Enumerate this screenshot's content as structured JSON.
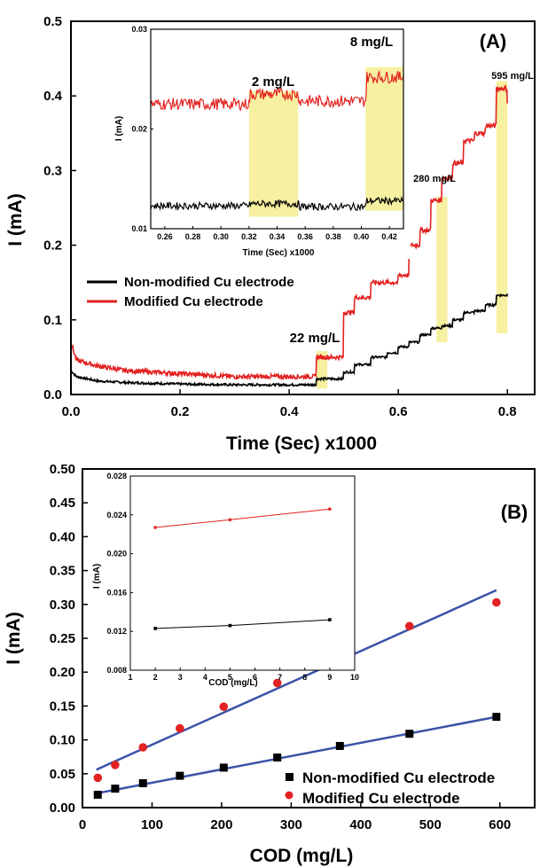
{
  "colors": {
    "modified": "#e32222",
    "nonmodified": "#000000",
    "fit": "#3b52a8",
    "highlight": "#f7f0a0"
  },
  "chart_data": [
    {
      "id": "A",
      "type": "line",
      "panel_label": "(A)",
      "xlabel": "Time (Sec) x1000",
      "ylabel": "I (mA)",
      "xlim": [
        0.0,
        0.85
      ],
      "ylim": [
        0.0,
        0.5
      ],
      "xticks": [
        "0.0",
        "0.2",
        "0.4",
        "0.6",
        "0.8"
      ],
      "yticks": [
        "0.0",
        "0.1",
        "0.2",
        "0.3",
        "0.4",
        "0.5"
      ],
      "legend": [
        "Non-modified Cu electrode",
        "Modified Cu electrode"
      ],
      "series": [
        {
          "name": "Non-modified Cu electrode",
          "x": [
            0.0,
            0.01,
            0.05,
            0.1,
            0.2,
            0.3,
            0.44,
            0.45,
            0.48,
            0.5,
            0.52,
            0.55,
            0.58,
            0.6,
            0.62,
            0.64,
            0.66,
            0.68,
            0.7,
            0.72,
            0.74,
            0.76,
            0.78,
            0.8
          ],
          "values": [
            0.032,
            0.024,
            0.018,
            0.016,
            0.014,
            0.013,
            0.013,
            0.021,
            0.021,
            0.03,
            0.04,
            0.05,
            0.056,
            0.064,
            0.07,
            0.08,
            0.089,
            0.092,
            0.1,
            0.11,
            0.112,
            0.12,
            0.133,
            0.135
          ]
        },
        {
          "name": "Modified Cu electrode",
          "x": [
            0.0,
            0.01,
            0.05,
            0.1,
            0.2,
            0.3,
            0.44,
            0.45,
            0.48,
            0.5,
            0.52,
            0.55,
            0.58,
            0.6,
            0.62,
            0.64,
            0.66,
            0.68,
            0.7,
            0.72,
            0.74,
            0.76,
            0.78,
            0.8
          ],
          "values": [
            0.07,
            0.046,
            0.038,
            0.032,
            0.028,
            0.024,
            0.024,
            0.05,
            0.05,
            0.11,
            0.13,
            0.15,
            0.15,
            0.16,
            0.2,
            0.22,
            0.26,
            0.29,
            0.31,
            0.34,
            0.35,
            0.36,
            0.41,
            0.39
          ]
        }
      ],
      "annotations": [
        "22 mg/L",
        "280 mg/L",
        "595 mg/L"
      ],
      "highlight_regions_x": [
        [
          0.45,
          0.47
        ],
        [
          0.67,
          0.69
        ],
        [
          0.78,
          0.8
        ]
      ],
      "inset": {
        "type": "line",
        "xlabel": "Time (Sec) x1000",
        "ylabel": "I (mA)",
        "xlim": [
          0.25,
          0.43
        ],
        "ylim": [
          0.01,
          0.03
        ],
        "xticks": [
          "0.26",
          "0.28",
          "0.30",
          "0.32",
          "0.34",
          "0.36",
          "0.38",
          "0.40",
          "0.42"
        ],
        "yticks": [
          "0.01",
          "0.02",
          "0.03"
        ],
        "annotations": [
          "2 mg/L",
          "8 mg/L"
        ],
        "highlight_regions_x": [
          [
            0.32,
            0.355
          ],
          [
            0.403,
            0.43
          ]
        ],
        "series": [
          {
            "name": "Modified Cu electrode",
            "x": [
              0.25,
              0.32,
              0.321,
              0.355,
              0.356,
              0.403,
              0.404,
              0.43
            ],
            "values": [
              0.0225,
              0.0225,
              0.0235,
              0.0235,
              0.0228,
              0.0228,
              0.0252,
              0.0252
            ]
          },
          {
            "name": "Non-modified Cu electrode",
            "x": [
              0.25,
              0.32,
              0.321,
              0.355,
              0.356,
              0.403,
              0.404,
              0.43
            ],
            "values": [
              0.0123,
              0.0123,
              0.0125,
              0.0125,
              0.0122,
              0.0122,
              0.0128,
              0.0128
            ]
          }
        ]
      }
    },
    {
      "id": "B",
      "type": "scatter",
      "panel_label": "(B)",
      "xlabel": "COD (mg/L)",
      "ylabel": "I (mA)",
      "xlim": [
        0,
        650
      ],
      "ylim": [
        0.0,
        0.5
      ],
      "xticks": [
        "0",
        "100",
        "200",
        "300",
        "400",
        "500",
        "600"
      ],
      "yticks": [
        "0.00",
        "0.05",
        "0.10",
        "0.15",
        "0.20",
        "0.25",
        "0.30",
        "0.35",
        "0.40",
        "0.45",
        "0.50"
      ],
      "legend": [
        "Non-modified Cu electrode",
        "Modified Cu electrode"
      ],
      "series": [
        {
          "name": "Non-modified Cu electrode",
          "marker": "square",
          "x": [
            22,
            47,
            87,
            140,
            203,
            280,
            370,
            470,
            595
          ],
          "values": [
            0.019,
            0.028,
            0.036,
            0.047,
            0.059,
            0.074,
            0.091,
            0.109,
            0.134
          ],
          "fit": [
            [
              20,
              0.021
            ],
            [
              595,
              0.134
            ]
          ]
        },
        {
          "name": "Modified Cu electrode",
          "marker": "circle",
          "x": [
            22,
            47,
            87,
            140,
            203,
            280,
            370,
            470,
            595
          ],
          "values": [
            0.044,
            0.063,
            0.089,
            0.117,
            0.149,
            0.184,
            0.224,
            0.268,
            0.303
          ],
          "fit": [
            [
              20,
              0.056
            ],
            [
              595,
              0.321
            ]
          ]
        }
      ],
      "inset": {
        "type": "line",
        "xlabel": "COD (mg/L)",
        "ylabel": "I (mA)",
        "xlim": [
          1,
          10
        ],
        "ylim": [
          0.008,
          0.028
        ],
        "xticks": [
          "1",
          "2",
          "3",
          "4",
          "5",
          "6",
          "7",
          "8",
          "9",
          "10"
        ],
        "yticks": [
          "0.008",
          "0.012",
          "0.016",
          "0.020",
          "0.024",
          "0.028"
        ],
        "series": [
          {
            "name": "Modified Cu electrode",
            "x": [
              2,
              5,
              9
            ],
            "values": [
              0.0227,
              0.0235,
              0.0246
            ]
          },
          {
            "name": "Non-modified Cu electrode",
            "x": [
              2,
              5,
              9
            ],
            "values": [
              0.0123,
              0.0126,
              0.0132
            ]
          }
        ]
      }
    }
  ]
}
